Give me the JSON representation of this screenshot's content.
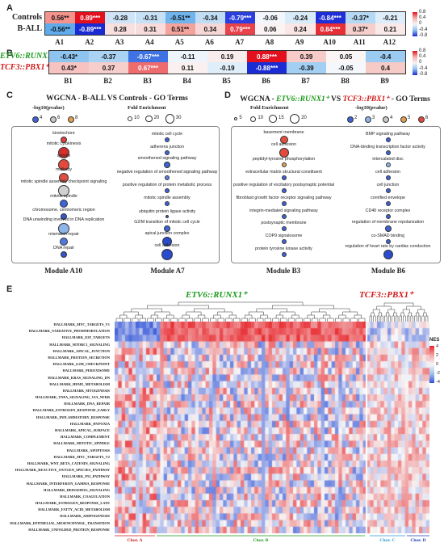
{
  "panels": {
    "a": "A",
    "b": "B",
    "c": "C",
    "d": "D",
    "e": "E"
  },
  "panel_a": {
    "rows": [
      {
        "label": "Controls",
        "cells": [
          {
            "t": "0.56**",
            "c": "#f4928c"
          },
          {
            "t": "0.89***",
            "c": "#e3101d"
          },
          {
            "t": "-0.28",
            "c": "#cfe5f7"
          },
          {
            "t": "-0.31",
            "c": "#c6e0f6"
          },
          {
            "t": "-0.51**",
            "c": "#6fb4ec"
          },
          {
            "t": "-0.34",
            "c": "#c1ddf5"
          },
          {
            "t": "-0.79***",
            "c": "#2b3fe0"
          },
          {
            "t": "-0.06",
            "c": "#f3f6fb"
          },
          {
            "t": "-0.24",
            "c": "#d8ebf9"
          },
          {
            "t": "-0.84***",
            "c": "#1e2fd8"
          },
          {
            "t": "-0.37*",
            "c": "#b5d8f4"
          },
          {
            "t": "-0.21",
            "c": "#ddedf9"
          }
        ]
      },
      {
        "label": "B-ALL",
        "cells": [
          {
            "t": "-0.56**",
            "c": "#5fabeb"
          },
          {
            "t": "-0.89***",
            "c": "#1a2ad2"
          },
          {
            "t": "0.28",
            "c": "#f8e0df"
          },
          {
            "t": "0.31",
            "c": "#f8dcdb"
          },
          {
            "t": "0.51**",
            "c": "#f4a29c"
          },
          {
            "t": "0.34",
            "c": "#f7d7d5"
          },
          {
            "t": "0.79***",
            "c": "#e8424a"
          },
          {
            "t": "0.06",
            "c": "#fbf3f3"
          },
          {
            "t": "0.24",
            "c": "#f9e6e5"
          },
          {
            "t": "0.84***",
            "c": "#e52e35"
          },
          {
            "t": "0.37*",
            "c": "#f6cfcc"
          },
          {
            "t": "0.21",
            "c": "#f9e9e8"
          }
        ]
      }
    ],
    "cols": [
      "A1",
      "A2",
      "A3",
      "A4",
      "A5",
      "A6",
      "A7",
      "A8",
      "A9",
      "A10",
      "A11",
      "A12"
    ],
    "cbar": [
      "0.8",
      "0.4",
      "0",
      "-0.4",
      "-0.8"
    ]
  },
  "panel_b": {
    "rows": [
      {
        "label": "ETV6::RUNX1⁺",
        "color": "#1a9a1a",
        "cells": [
          {
            "t": "-0.43*",
            "c": "#8ec5f0"
          },
          {
            "t": "-0.37",
            "c": "#a9d2f3"
          },
          {
            "t": "-0.67***",
            "c": "#3f72e2"
          },
          {
            "t": "-0.11",
            "c": "#edf4fb"
          },
          {
            "t": "0.19",
            "c": "#f9ecec"
          },
          {
            "t": "0.88***",
            "c": "#e3111e"
          },
          {
            "t": "0.39",
            "c": "#f6cbc8"
          },
          {
            "t": "0.05",
            "c": "#fbf5f5"
          },
          {
            "t": "-0.4",
            "c": "#9ccbf2"
          }
        ]
      },
      {
        "label": "TCF3::PBX1⁺",
        "color": "#d01818",
        "cells": [
          {
            "t": "0.43*",
            "c": "#f6c3c0"
          },
          {
            "t": "0.37",
            "c": "#f6cfcc"
          },
          {
            "t": "0.67***",
            "c": "#ee6b6e"
          },
          {
            "t": "0.11",
            "c": "#faf0f0"
          },
          {
            "t": "-0.19",
            "c": "#e0eef9"
          },
          {
            "t": "-0.88***",
            "c": "#1b2cd4"
          },
          {
            "t": "-0.39",
            "c": "#a2cff2"
          },
          {
            "t": "-0.05",
            "c": "#f4f7fb"
          },
          {
            "t": "0.4",
            "c": "#f6cac7"
          }
        ]
      }
    ],
    "cols": [
      "B1",
      "B2",
      "B3",
      "B4",
      "B5",
      "B6",
      "B7",
      "B8",
      "B9"
    ],
    "cbar": [
      "0.8",
      "0.4",
      "0",
      "-0.4",
      "-0.8"
    ]
  },
  "panel_c": {
    "title": "WGCNA - B-ALL VS Controls - GO Terms",
    "legend_p_title": "-log10(pvalue)",
    "legend_p": [
      "4",
      "6",
      "8"
    ],
    "legend_f_title": "Fold Enrichment",
    "legend_f": [
      "10",
      "20",
      "30"
    ],
    "left_module": "Module A10",
    "right_module": "Module A7",
    "left_terms": [
      {
        "t": "kinetochore",
        "r": 4,
        "c": "#e04040"
      },
      {
        "t": "mitotic cytokinesis",
        "r": 7,
        "c": "#d6302d"
      },
      {
        "t": "spindle",
        "r": 7,
        "c": "#e34a3d"
      },
      {
        "t": "midbody",
        "r": 6,
        "c": "#e05040"
      },
      {
        "t": "mitotic spindle assembly checkpoint signaling",
        "r": 7,
        "c": "#d0d0d0"
      },
      {
        "t": "mitotic spindle",
        "r": 5,
        "c": "#3d63d6"
      },
      {
        "t": "chromosome, centromeric region",
        "r": 4,
        "c": "#3355cc"
      },
      {
        "t": "DNA unwinding involved in DNA replication",
        "r": 7,
        "c": "#8fb4ea"
      },
      {
        "t": "mismatch repair",
        "r": 5,
        "c": "#5078dc"
      },
      {
        "t": "DNA repair",
        "r": 4,
        "c": "#3355cc"
      }
    ],
    "right_terms": [
      {
        "t": "mitotic cell cycle",
        "r": 3,
        "c": "#3d63d6"
      },
      {
        "t": "adherens junction",
        "r": 3,
        "c": "#3d63d6"
      },
      {
        "t": "smoothened signaling pathway",
        "r": 4,
        "c": "#3d63d6"
      },
      {
        "t": "negative regulation of smoothened signaling pathway",
        "r": 3,
        "c": "#5a7fdc"
      },
      {
        "t": "positive regulation of protein metabolic process",
        "r": 3,
        "c": "#3d63d6"
      },
      {
        "t": "mitotic spindle assembly",
        "r": 3,
        "c": "#3d63d6"
      },
      {
        "t": "ubiquitin protein ligase activity",
        "r": 2,
        "c": "#3d63d6"
      },
      {
        "t": "G2/M transition of mitotic cell cycle",
        "r": 4,
        "c": "#3d63d6"
      },
      {
        "t": "apical junction complex",
        "r": 6,
        "c": "#2a4ccc"
      },
      {
        "t": "cell adhesion",
        "r": 7,
        "c": "#2a4ccc"
      }
    ]
  },
  "panel_d": {
    "title_pre": "WGCNA - ",
    "title_g1": "ETV6::RUNX1⁺",
    "title_mid": " VS ",
    "title_g2": "TCF3::PBX1⁺",
    "title_post": " - GO Terms",
    "legend_f_title": "Fold Enrichment",
    "legend_f": [
      "5",
      "10",
      "15",
      "20"
    ],
    "legend_p_title": "-log10(pvalue)",
    "legend_p": [
      "2",
      "3",
      "4",
      "5",
      "6"
    ],
    "left_module": "Module B3",
    "right_module": "Module B6",
    "left_terms": [
      {
        "t": "basement membrane",
        "r": 5,
        "c": "#e05040"
      },
      {
        "t": "cell adhesion",
        "r": 6,
        "c": "#e34a3d"
      },
      {
        "t": "peptidyl-tyrosine phosphorylation",
        "r": 3,
        "c": "#e0a050"
      },
      {
        "t": "extracellular matrix structural constituent",
        "r": 3,
        "c": "#3d63d6"
      },
      {
        "t": "positive regulation of excitatory postsynaptic potential",
        "r": 3,
        "c": "#3d63d6"
      },
      {
        "t": "fibroblast growth factor receptor signaling pathway",
        "r": 3,
        "c": "#3d63d6"
      },
      {
        "t": "integrin-mediated signaling pathway",
        "r": 3,
        "c": "#3d63d6"
      },
      {
        "t": "postsynaptic membrane",
        "r": 3,
        "c": "#3d63d6"
      },
      {
        "t": "COP9 signalosome",
        "r": 3,
        "c": "#3d63d6"
      },
      {
        "t": "protein tyrosine kinase activity",
        "r": 3,
        "c": "#3d63d6"
      }
    ],
    "right_terms": [
      {
        "t": "BMP signaling pathway",
        "r": 3,
        "c": "#3d63d6"
      },
      {
        "t": "DNA-binding transcription factor activity",
        "r": 3,
        "c": "#3d63d6"
      },
      {
        "t": "intercalated disc",
        "r": 3,
        "c": "#8fb4ea"
      },
      {
        "t": "cell adhesion",
        "r": 3,
        "c": "#3d63d6"
      },
      {
        "t": "cell junction",
        "r": 3,
        "c": "#3d63d6"
      },
      {
        "t": "cornified envelope",
        "r": 3,
        "c": "#3d63d6"
      },
      {
        "t": "CD40 receptor complex",
        "r": 3,
        "c": "#3d63d6"
      },
      {
        "t": "regulation of membrane repolarization",
        "r": 4,
        "c": "#3d63d6"
      },
      {
        "t": "co-SMAD binding",
        "r": 3,
        "c": "#3d63d6"
      },
      {
        "t": "regulation of heart rate by cardiac conduction",
        "r": 6,
        "c": "#2a4ccc"
      }
    ]
  },
  "panel_e": {
    "group1": "ETV6::RUNX1⁺",
    "group2": "TCF3::PBX1⁺",
    "legend_title": "NES",
    "legend_ticks": [
      "4",
      "2",
      "0",
      "-2",
      "-4"
    ],
    "clusters": [
      "Clust. A",
      "Clust. B",
      "Clust. C",
      "Clust. D"
    ],
    "rows": [
      "HALLMARK_MYC_TARGETS_V1",
      "HALLMARK_OXIDATIVE_PHOSPHORYLATION",
      "HALLMARK_E2F_TARGETS",
      "HALLMARK_MTORC1_SIGNALING",
      "HALLMARK_APICAL_JUNCTION",
      "HALLMARK_PROTEIN_SECRETION",
      "HALLMARK_G2M_CHECKPOINT",
      "HALLMARK_PEROXISOME",
      "HALLMARK_KRAS_SIGNALING_DN",
      "HALLMARK_HEME_METABOLISM",
      "HALLMARK_MYOGENESIS",
      "HALLMARK_TNFA_SIGNALING_VIA_NFKB",
      "HALLMARK_DNA_REPAIR",
      "HALLMARK_ESTROGEN_RESPONSE_EARLY",
      "HALLMARK_INFLAMMATORY_RESPONSE",
      "HALLMARK_HYPOXIA",
      "HALLMARK_APICAL_SURFACE",
      "HALLMARK_COMPLEMENT",
      "HALLMARK_MITOTIC_SPINDLE",
      "HALLMARK_APOPTOSIS",
      "HALLMARK_MYC_TARGETS_V2",
      "HALLMARK_WNT_BETA_CATENIN_SIGNALING",
      "HALLMARK_REACTIVE_OXYGEN_SPECIES_PATHWAY",
      "HALLMARK_P53_PATHWAY",
      "HALLMARK_INTERFERON_GAMMA_RESPONSE",
      "HALLMARK_HEDGEHOG_SIGNALING",
      "HALLMARK_COAGULATION",
      "HALLMARK_ESTROGEN_RESPONSE_LATE",
      "HALLMARK_FATTY_ACID_METABOLISM",
      "HALLMARK_ADIPOGENESIS",
      "HALLMARK_EPITHELIAL_MESENCHYMAL_TRANSITION",
      "HALLMARK_UNFOLDED_PROTEIN_RESPONSE"
    ]
  }
}
